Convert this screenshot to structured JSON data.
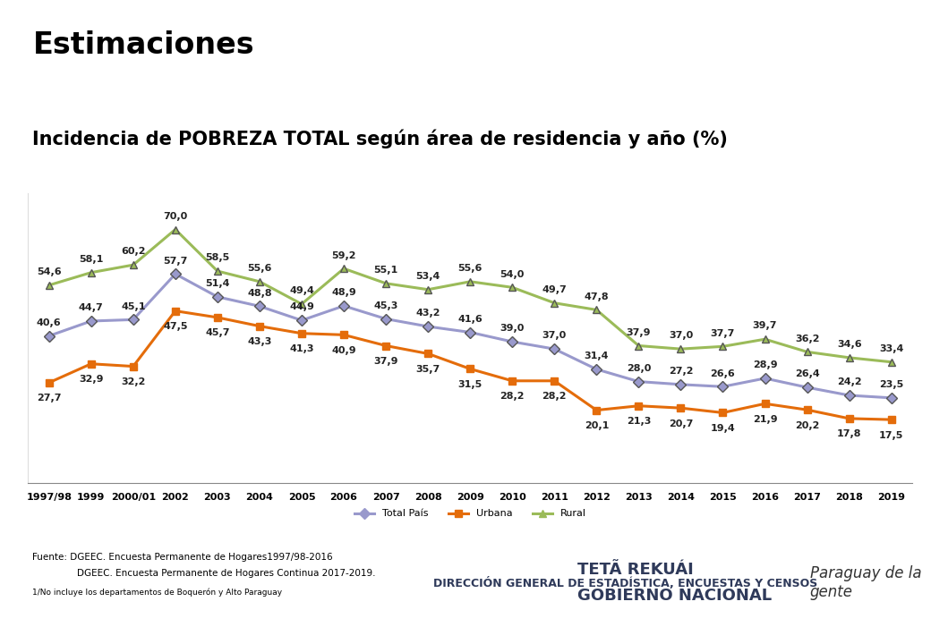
{
  "chart_data": {
    "type": "line",
    "title": "Estimaciones",
    "subtitle": "Incidencia de POBREZA TOTAL según área de residencia y año (%)",
    "categories": [
      "1997/98",
      "1999",
      "2000/01",
      "2002",
      "2003",
      "2004",
      "2005",
      "2006",
      "2007",
      "2008",
      "2009",
      "2010",
      "2011",
      "2012",
      "2013",
      "2014",
      "2015",
      "2016",
      "2017",
      "2018",
      "2019"
    ],
    "series": [
      {
        "name": "Total País",
        "color": "#9999CC",
        "marker": "diamond",
        "values": [
          40.6,
          44.7,
          45.1,
          57.7,
          51.4,
          48.8,
          44.9,
          48.9,
          45.3,
          43.2,
          41.6,
          39.0,
          37.0,
          31.4,
          28.0,
          27.2,
          26.6,
          28.9,
          26.4,
          24.2,
          23.5
        ],
        "value_labels": [
          "40,6",
          "44,7",
          "45,1",
          "57,7",
          "51,4",
          "48,8",
          "44,9",
          "48,9",
          "45,3",
          "43,2",
          "41,6",
          "39,0",
          "37,0",
          "31,4",
          "28,0",
          "27,2",
          "26,6",
          "28,9",
          "26,4",
          "24,2",
          "23,5"
        ]
      },
      {
        "name": "Urbana",
        "color": "#E46C0A",
        "marker": "square",
        "values": [
          27.7,
          32.9,
          32.2,
          47.5,
          45.7,
          43.3,
          41.3,
          40.9,
          37.9,
          35.7,
          31.5,
          28.2,
          28.2,
          20.1,
          21.3,
          20.7,
          19.4,
          21.9,
          20.2,
          17.8,
          17.5
        ],
        "value_labels": [
          "27,7",
          "32,9",
          "32,2",
          "47,5",
          "45,7",
          "43,3",
          "41,3",
          "40,9",
          "37,9",
          "35,7",
          "31,5",
          "28,2",
          "28,2",
          "20,1",
          "21,3",
          "20,7",
          "19,4",
          "21,9",
          "20,2",
          "17,8",
          "17,5"
        ]
      },
      {
        "name": "Rural",
        "color": "#9BBB59",
        "marker": "triangle",
        "values": [
          54.6,
          58.1,
          60.2,
          70.0,
          58.5,
          55.6,
          49.4,
          59.2,
          55.1,
          53.4,
          55.6,
          54.0,
          49.7,
          47.8,
          37.9,
          37.0,
          37.7,
          39.7,
          36.2,
          34.6,
          33.4
        ],
        "value_labels": [
          "54,6",
          "58,1",
          "60,2",
          "70,0",
          "58,5",
          "55,6",
          "49,4",
          "59,2",
          "55,1",
          "53,4",
          "55,6",
          "54,0",
          "49,7",
          "47,8",
          "37,9",
          "37,0",
          "37,7",
          "39,7",
          "36,2",
          "34,6",
          "33,4"
        ]
      }
    ],
    "ylim": [
      0,
      80
    ],
    "yticks": [],
    "tick_labels": "x",
    "grid": false,
    "data_labels": true,
    "legend": "bottom",
    "annotations": [
      "Fuente: DGEEC. Encuesta Permanente de Hogares1997/98-2016",
      "DGEEC. Encuesta Permanente de Hogares Continua 2017-2019.",
      "1/No incluye los departamentos de Boquerón y Alto Paraguay",
      "DIRECCIÓN GENERAL DE ESTADÍSTICA, ENCUESTAS Y CENSOS",
      "TETÃ REKUÁI",
      "GOBIERNO NACIONAL",
      "Paraguay de la gente"
    ]
  }
}
